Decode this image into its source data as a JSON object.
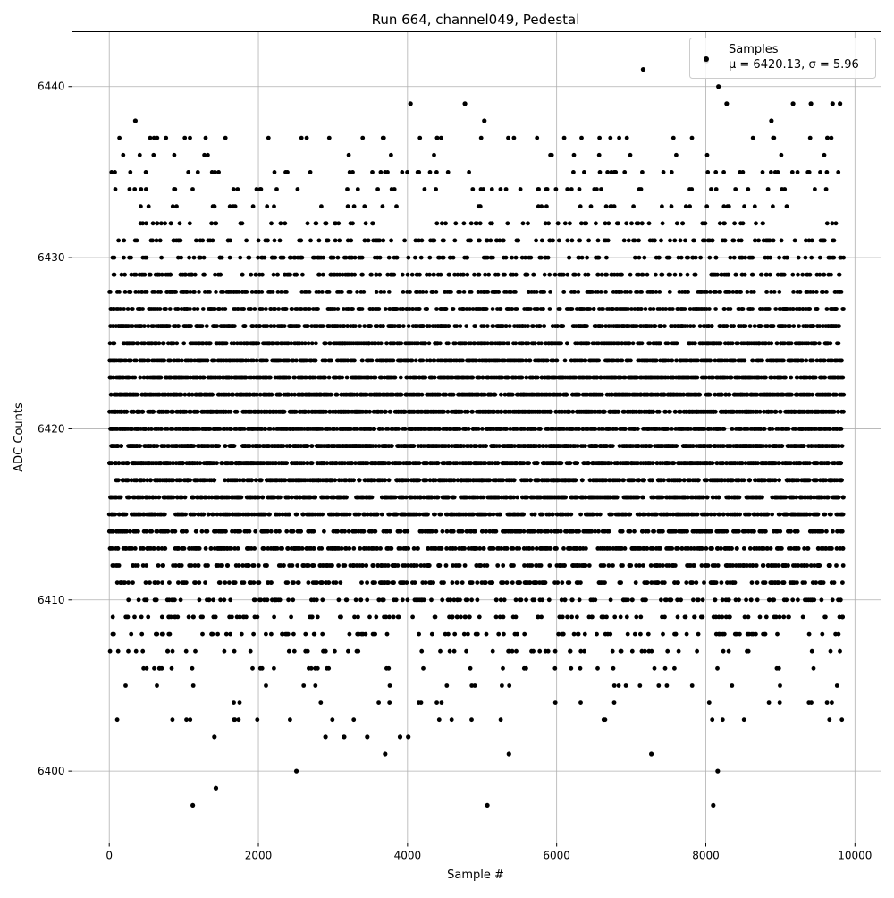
{
  "chart_data": {
    "type": "scatter",
    "title": "Run 664, channel049, Pedestal",
    "xlabel": "Sample #",
    "ylabel": "ADC Counts",
    "xlim": [
      -500,
      10350
    ],
    "ylim": [
      6395.8,
      6443.2
    ],
    "xticks": [
      0,
      2000,
      4000,
      6000,
      8000,
      10000
    ],
    "yticks": [
      6400,
      6410,
      6420,
      6430,
      6440
    ],
    "grid": true,
    "legend": {
      "placement": "top-right",
      "entries": [
        "Samples",
        "μ = 6420.13, σ = 5.96"
      ]
    },
    "series": [
      {
        "name": "Samples",
        "color": "#000000",
        "mean": 6420.13,
        "sigma": 5.96,
        "x_range": [
          0,
          9850
        ],
        "value_step": 1,
        "outlier_points": [
          [
            1120,
            6398
          ],
          [
            1430,
            6399
          ],
          [
            2510,
            6400
          ],
          [
            5070,
            6398
          ],
          [
            8100,
            6398
          ],
          [
            8160,
            6400
          ],
          [
            3700,
            6401
          ],
          [
            5360,
            6401
          ],
          [
            7270,
            6401
          ],
          [
            1410,
            6402
          ],
          [
            3150,
            6402
          ],
          [
            3460,
            6402
          ],
          [
            3900,
            6402
          ],
          [
            4010,
            6402
          ],
          [
            2900,
            6402
          ],
          [
            7160,
            6441
          ],
          [
            8010,
            6441.5
          ],
          [
            8170,
            6440
          ],
          [
            4040,
            6439
          ],
          [
            4770,
            6439
          ],
          [
            8280,
            6439
          ],
          [
            9170,
            6439
          ],
          [
            9410,
            6439
          ],
          [
            9700,
            6439
          ],
          [
            9800,
            6439
          ],
          [
            350,
            6438
          ],
          [
            5030,
            6438
          ],
          [
            8880,
            6438
          ]
        ]
      }
    ]
  }
}
